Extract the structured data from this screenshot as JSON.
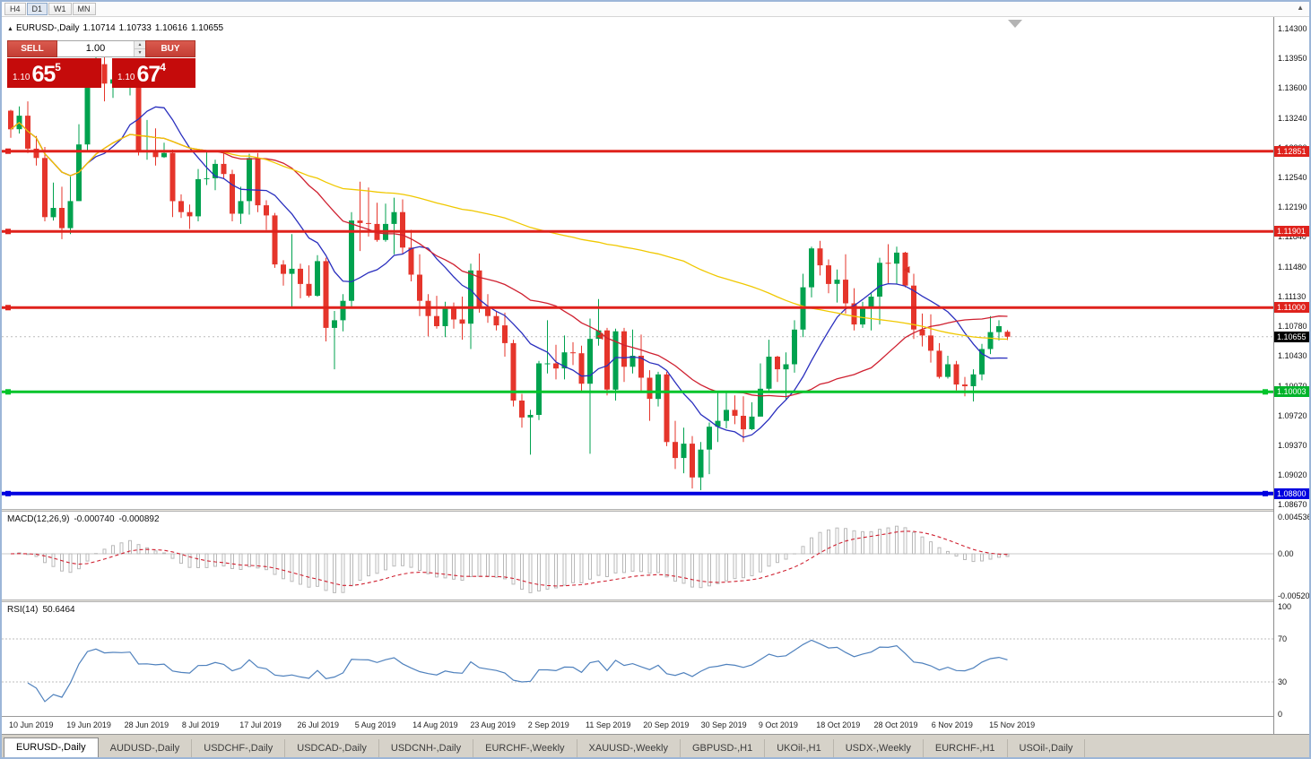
{
  "toolbar": {
    "periods": [
      {
        "label": "H4",
        "active": false
      },
      {
        "label": "D1",
        "active": true
      },
      {
        "label": "W1",
        "active": false
      },
      {
        "label": "MN",
        "active": false
      }
    ],
    "corner_icon": "▲"
  },
  "chart": {
    "header": {
      "collapse_icon": "▲",
      "symbol": "EURUSD-,Daily",
      "open": "1.10714",
      "high": "1.10733",
      "low": "1.10616",
      "close": "1.10655"
    },
    "trade_panel": {
      "sell_label": "SELL",
      "buy_label": "BUY",
      "volume": "1.00",
      "sell_price": {
        "prefix": "1.10",
        "big": "65",
        "sup": "5"
      },
      "buy_price": {
        "prefix": "1.10",
        "big": "67",
        "sup": "4"
      }
    },
    "y_axis": [
      "1.14300",
      "1.13950",
      "1.13600",
      "1.13240",
      "1.12890",
      "1.12540",
      "1.12190",
      "1.11840",
      "1.11480",
      "1.11130",
      "1.10780",
      "1.10430",
      "1.10070",
      "1.09720",
      "1.09370",
      "1.09020",
      "1.08670"
    ],
    "price_labels": [
      {
        "text": "1.12851",
        "color": "#df221c"
      },
      {
        "text": "1.11901",
        "color": "#df221c"
      },
      {
        "text": "1.11000",
        "color": "#df221c"
      },
      {
        "text": "1.10003",
        "color": "#00b32a"
      },
      {
        "text": "1.08800",
        "color": "#0000e0"
      },
      {
        "text": "1.10655",
        "color": "#000000"
      }
    ],
    "current_price": {
      "text": "1.10655",
      "value": 1.10655
    },
    "hlines": [
      {
        "price": 1.12851,
        "color": "#df221c",
        "width": 3,
        "handles": "left"
      },
      {
        "price": 1.11901,
        "color": "#df221c",
        "width": 3,
        "handles": "left"
      },
      {
        "price": 1.11,
        "color": "#df221c",
        "width": 3,
        "handles": "left"
      },
      {
        "price": 1.10003,
        "color": "#00c42a",
        "width": 3,
        "handles": "both"
      },
      {
        "price": 1.088,
        "color": "#0000e0",
        "width": 4,
        "handles": "both"
      }
    ],
    "markers": [
      {
        "index": 69,
        "price": 1.1066
      },
      {
        "index": 105,
        "price": 1.11448
      }
    ]
  },
  "macd_panel": {
    "name": "MACD(12,26,9)",
    "value": "-0.000740",
    "signal": "-0.000892",
    "axis": [
      "0.004536",
      "0.00",
      "-0.0052050"
    ]
  },
  "rsi_panel": {
    "name": "RSI(14)",
    "value": "50.6464",
    "axis": [
      "100",
      "70",
      "30",
      "0"
    ]
  },
  "x_labels": [
    "10 Jun 2019",
    "19 Jun 2019",
    "28 Jun 2019",
    "8 Jul 2019",
    "17 Jul 2019",
    "26 Jul 2019",
    "5 Aug 2019",
    "14 Aug 2019",
    "23 Aug 2019",
    "2 Sep 2019",
    "11 Sep 2019",
    "20 Sep 2019",
    "30 Sep 2019",
    "9 Oct 2019",
    "18 Oct 2019",
    "28 Oct 2019",
    "6 Nov 2019",
    "15 Nov 2019"
  ],
  "tabs": [
    {
      "label": "EURUSD-,Daily",
      "active": true
    },
    {
      "label": "AUDUSD-,Daily",
      "active": false
    },
    {
      "label": "USDCHF-,Daily",
      "active": false
    },
    {
      "label": "USDCAD-,Daily",
      "active": false
    },
    {
      "label": "USDCNH-,Daily",
      "active": false
    },
    {
      "label": "EURCHF-,Weekly",
      "active": false
    },
    {
      "label": "XAUUSD-,Weekly",
      "active": false
    },
    {
      "label": "GBPUSD-,H1",
      "active": false
    },
    {
      "label": "UKOil-,H1",
      "active": false
    },
    {
      "label": "USDX-,Weekly",
      "active": false
    },
    {
      "label": "EURCHF-,H1",
      "active": false
    },
    {
      "label": "USOil-,Daily",
      "active": false
    }
  ],
  "chart_data": {
    "type": "candlestick",
    "symbol": "EURUSD-",
    "timeframe": "Daily",
    "title": "EURUSD-,Daily",
    "last_bar": {
      "open": 1.10714,
      "high": 1.10733,
      "low": 1.10616,
      "close": 1.10655
    },
    "y_range": [
      1.0867,
      1.143
    ],
    "x_range": [
      "10 Jun 2019",
      "20 Nov 2019"
    ],
    "levels": {
      "resistance": [
        1.12851,
        1.11901,
        1.11
      ],
      "support_green": 1.10003,
      "support_blue": 1.088
    },
    "colors": {
      "up": "#00a24f",
      "down": "#e5352b"
    },
    "moving_averages": [
      {
        "period": 10,
        "color": "#2a2fbe"
      },
      {
        "period": 25,
        "color": "#cf2030"
      },
      {
        "period": 80,
        "color": "#f0c800"
      }
    ],
    "indicators": {
      "macd": {
        "fast": 12,
        "slow": 26,
        "signal": 9,
        "value": -0.00074,
        "signal_value": -0.000892
      },
      "rsi": {
        "period": 14,
        "value": 50.6464
      }
    },
    "candles": [
      [
        1.1333,
        1.1334,
        1.1301,
        1.1311
      ],
      [
        1.1311,
        1.1338,
        1.1306,
        1.1327
      ],
      [
        1.1327,
        1.1344,
        1.1283,
        1.1288
      ],
      [
        1.1288,
        1.1303,
        1.1268,
        1.1277
      ],
      [
        1.1277,
        1.129,
        1.1202,
        1.1207
      ],
      [
        1.1207,
        1.1248,
        1.1203,
        1.1218
      ],
      [
        1.1218,
        1.1243,
        1.1181,
        1.1194
      ],
      [
        1.1194,
        1.1255,
        1.1187,
        1.1226
      ],
      [
        1.1226,
        1.1317,
        1.1226,
        1.1293
      ],
      [
        1.1293,
        1.1378,
        1.1285,
        1.1368
      ],
      [
        1.1368,
        1.1396,
        1.1366,
        1.1388
      ],
      [
        1.1388,
        1.1399,
        1.1344,
        1.1365
      ],
      [
        1.1365,
        1.1391,
        1.1348,
        1.137
      ],
      [
        1.137,
        1.1388,
        1.1362,
        1.1368
      ],
      [
        1.1368,
        1.1394,
        1.1351,
        1.1373
      ],
      [
        1.1364,
        1.137,
        1.128,
        1.1285
      ],
      [
        1.1285,
        1.1322,
        1.1275,
        1.1286
      ],
      [
        1.1286,
        1.1312,
        1.1268,
        1.1278
      ],
      [
        1.1278,
        1.1295,
        1.1277,
        1.1283
      ],
      [
        1.1283,
        1.1287,
        1.1207,
        1.1226
      ],
      [
        1.1226,
        1.1234,
        1.1206,
        1.1213
      ],
      [
        1.1213,
        1.1222,
        1.1193,
        1.1208
      ],
      [
        1.1208,
        1.1264,
        1.1202,
        1.1252
      ],
      [
        1.1252,
        1.1286,
        1.1245,
        1.1253
      ],
      [
        1.1253,
        1.1275,
        1.1239,
        1.127
      ],
      [
        1.127,
        1.1283,
        1.1253,
        1.1258
      ],
      [
        1.1258,
        1.1263,
        1.1202,
        1.1211
      ],
      [
        1.1211,
        1.1243,
        1.1199,
        1.1226
      ],
      [
        1.1226,
        1.1282,
        1.121,
        1.1277
      ],
      [
        1.1277,
        1.1283,
        1.1213,
        1.1221
      ],
      [
        1.1221,
        1.1227,
        1.1192,
        1.1209
      ],
      [
        1.1209,
        1.1212,
        1.1147,
        1.1151
      ],
      [
        1.1151,
        1.1156,
        1.1126,
        1.114
      ],
      [
        1.114,
        1.1187,
        1.1101,
        1.1146
      ],
      [
        1.1146,
        1.1152,
        1.1111,
        1.1128
      ],
      [
        1.1128,
        1.115,
        1.1112,
        1.1114
      ],
      [
        1.1114,
        1.1162,
        1.1113,
        1.1155
      ],
      [
        1.1155,
        1.1159,
        1.106,
        1.1076
      ],
      [
        1.1076,
        1.1096,
        1.1027,
        1.1085
      ],
      [
        1.1085,
        1.1116,
        1.1072,
        1.1108
      ],
      [
        1.1108,
        1.1213,
        1.1101,
        1.1203
      ],
      [
        1.1203,
        1.1249,
        1.1167,
        1.12
      ],
      [
        1.12,
        1.1242,
        1.1184,
        1.1199
      ],
      [
        1.1199,
        1.1224,
        1.1178,
        1.118
      ],
      [
        1.118,
        1.1223,
        1.1178,
        1.1199
      ],
      [
        1.1199,
        1.123,
        1.1163,
        1.1213
      ],
      [
        1.1213,
        1.1228,
        1.1163,
        1.1171
      ],
      [
        1.1171,
        1.1192,
        1.1131,
        1.1139
      ],
      [
        1.1139,
        1.1163,
        1.109,
        1.1108
      ],
      [
        1.1108,
        1.1116,
        1.1066,
        1.109
      ],
      [
        1.109,
        1.1114,
        1.1075,
        1.1078
      ],
      [
        1.1078,
        1.1107,
        1.1065,
        1.1099
      ],
      [
        1.1099,
        1.1106,
        1.1075,
        1.1086
      ],
      [
        1.1086,
        1.1113,
        1.1062,
        1.1081
      ],
      [
        1.1081,
        1.1152,
        1.1051,
        1.1144
      ],
      [
        1.1144,
        1.1164,
        1.1094,
        1.1101
      ],
      [
        1.1101,
        1.1116,
        1.1082,
        1.109
      ],
      [
        1.109,
        1.1095,
        1.1073,
        1.1079
      ],
      [
        1.1079,
        1.1094,
        1.1042,
        1.1058
      ],
      [
        1.1058,
        1.1062,
        1.0983,
        1.099
      ],
      [
        1.099,
        1.0998,
        1.0958,
        1.097
      ],
      [
        1.097,
        1.0979,
        1.0926,
        1.0973
      ],
      [
        1.0973,
        1.1037,
        1.0967,
        1.1034
      ],
      [
        1.1034,
        1.1085,
        1.1022,
        1.1034
      ],
      [
        1.1034,
        1.1056,
        1.1015,
        1.1028
      ],
      [
        1.1028,
        1.1067,
        1.1015,
        1.1047
      ],
      [
        1.1047,
        1.1059,
        1.1032,
        1.1046
      ],
      [
        1.1046,
        1.1055,
        1.1,
        1.101
      ],
      [
        1.101,
        1.1087,
        1.0927,
        1.1063
      ],
      [
        1.1063,
        1.111,
        1.1055,
        1.1073
      ],
      [
        1.1073,
        1.1076,
        1.0996,
        1.1003
      ],
      [
        1.1003,
        1.1075,
        1.099,
        1.1072
      ],
      [
        1.1072,
        1.1076,
        1.1012,
        1.103
      ],
      [
        1.103,
        1.1074,
        1.1022,
        1.1043
      ],
      [
        1.1043,
        1.1068,
        1.1,
        1.1017
      ],
      [
        1.1017,
        1.1026,
        1.0966,
        1.0992
      ],
      [
        1.0992,
        1.1024,
        1.0983,
        1.1021
      ],
      [
        1.1021,
        1.1024,
        1.0936,
        1.0941
      ],
      [
        1.0941,
        1.0966,
        1.0909,
        1.0922
      ],
      [
        1.0922,
        1.0958,
        1.0904,
        1.0939
      ],
      [
        1.0939,
        1.0948,
        1.0886,
        1.0899
      ],
      [
        1.0899,
        1.0941,
        1.0884,
        1.0932
      ],
      [
        1.0932,
        1.0964,
        1.0903,
        1.0959
      ],
      [
        1.0959,
        1.0999,
        1.0941,
        1.0966
      ],
      [
        1.0966,
        1.0999,
        1.0957,
        1.0979
      ],
      [
        1.0979,
        1.0996,
        1.0962,
        1.0972
      ],
      [
        1.0972,
        1.0995,
        1.0941,
        1.0956
      ],
      [
        1.0956,
        1.0988,
        1.0955,
        1.0971
      ],
      [
        1.0971,
        1.1034,
        1.0971,
        1.1004
      ],
      [
        1.1004,
        1.1062,
        1.1002,
        1.1042
      ],
      [
        1.1042,
        1.1043,
        1.1012,
        1.1027
      ],
      [
        1.1027,
        1.1047,
        1.0991,
        1.1033
      ],
      [
        1.1033,
        1.1085,
        1.1023,
        1.1074
      ],
      [
        1.1074,
        1.114,
        1.1065,
        1.1124
      ],
      [
        1.1124,
        1.1172,
        1.1112,
        1.117
      ],
      [
        1.117,
        1.1179,
        1.1138,
        1.115
      ],
      [
        1.115,
        1.1157,
        1.1117,
        1.1128
      ],
      [
        1.1128,
        1.1145,
        1.1106,
        1.1133
      ],
      [
        1.1133,
        1.1163,
        1.1093,
        1.1105
      ],
      [
        1.1105,
        1.1123,
        1.1073,
        1.108
      ],
      [
        1.108,
        1.1107,
        1.1076,
        1.1099
      ],
      [
        1.1099,
        1.1118,
        1.1073,
        1.1113
      ],
      [
        1.1113,
        1.1159,
        1.108,
        1.1153
      ],
      [
        1.1153,
        1.1175,
        1.1129,
        1.1152
      ],
      [
        1.1152,
        1.1172,
        1.1128,
        1.1165
      ],
      [
        1.1165,
        1.1166,
        1.1124,
        1.1126
      ],
      [
        1.1126,
        1.114,
        1.1063,
        1.1074
      ],
      [
        1.1074,
        1.1093,
        1.1054,
        1.1067
      ],
      [
        1.1067,
        1.1092,
        1.1035,
        1.1049
      ],
      [
        1.1049,
        1.1058,
        1.1016,
        1.1018
      ],
      [
        1.1018,
        1.1043,
        1.1016,
        1.1033
      ],
      [
        1.1033,
        1.1037,
        1.1002,
        1.1009
      ],
      [
        1.1009,
        1.1018,
        1.0995,
        1.1007
      ],
      [
        1.1007,
        1.1027,
        1.0989,
        1.1021
      ],
      [
        1.1021,
        1.1057,
        1.1014,
        1.1051
      ],
      [
        1.1051,
        1.109,
        1.1045,
        1.1071
      ],
      [
        1.1071,
        1.1085,
        1.1061,
        1.1078
      ],
      [
        1.10714,
        1.10733,
        1.10616,
        1.10655
      ]
    ]
  }
}
